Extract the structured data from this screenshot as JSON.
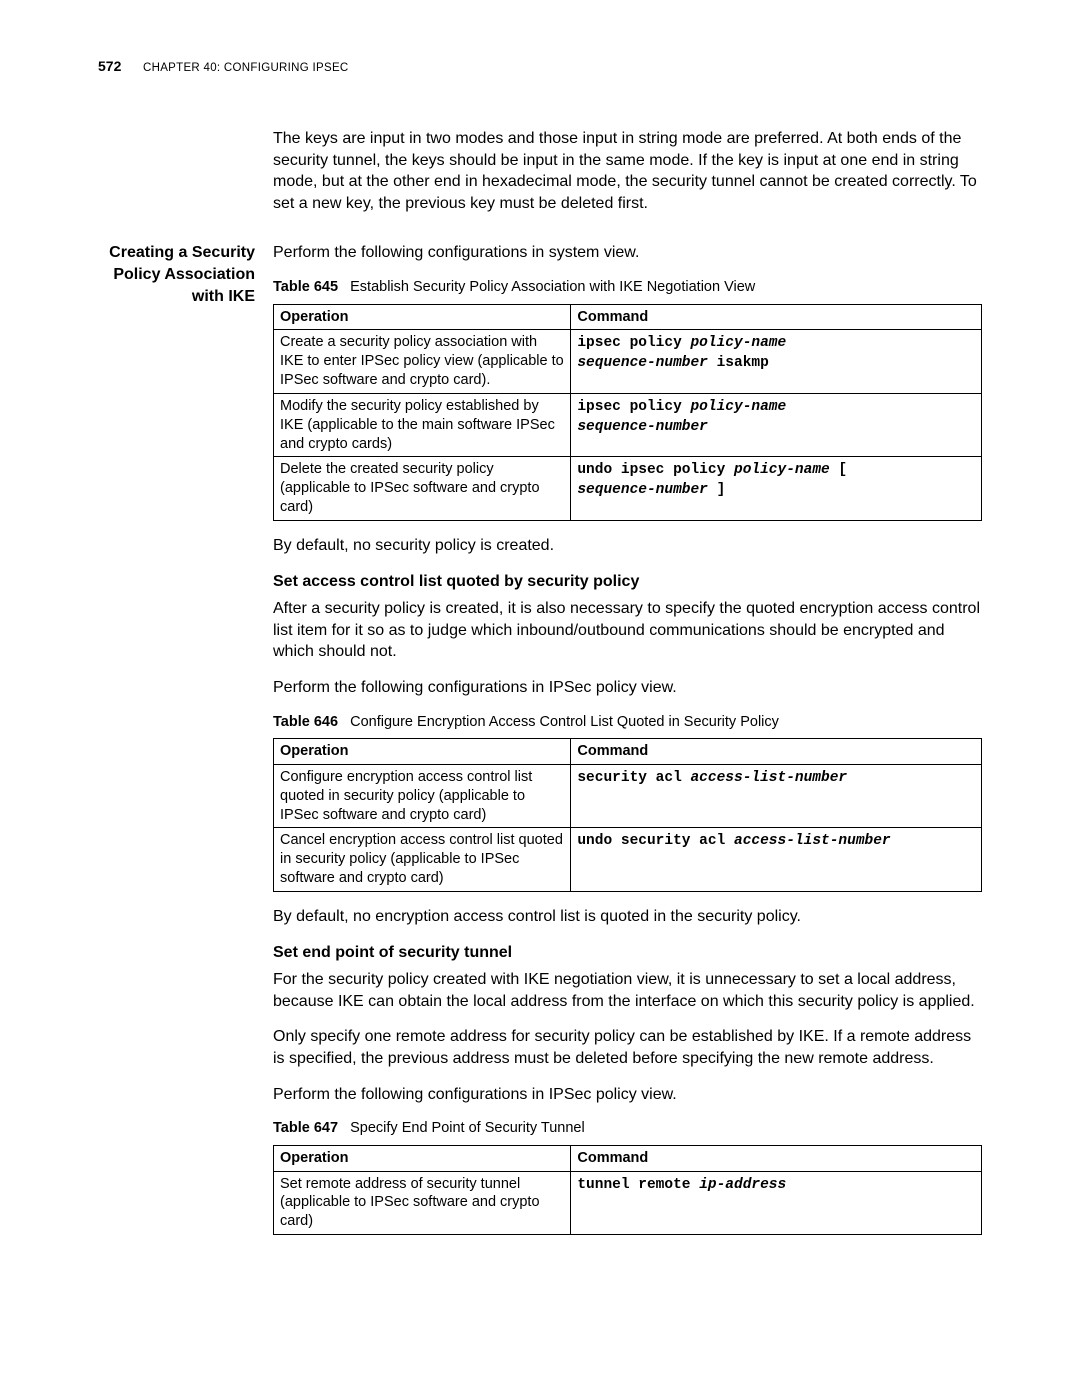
{
  "header": {
    "page_number": "572",
    "chapter_prefix": "C",
    "chapter_word": "HAPTER",
    "chapter_num": " 40: C",
    "chapter_word2": "ONFIGURING",
    "chapter_tail": " IPS",
    "chapter_tail2": "EC"
  },
  "intro_paragraph": "The keys are input in two modes and those input in string mode are preferred. At both ends of the security tunnel, the keys should be input in the same mode. If the key is input at one end in string mode, but at the other end in hexadecimal mode, the security tunnel cannot be created correctly. To set a new key, the previous key must be deleted first.",
  "section1": {
    "side_title": "Creating a Security Policy Association with IKE",
    "lead": "Perform the following configurations in system view.",
    "table_caption_num": "Table 645",
    "table_caption_text": "Establish Security Policy Association with IKE Negotiation View",
    "headers": {
      "op": "Operation",
      "cmd": "Command"
    },
    "rows": [
      {
        "op": "Create a security policy association with IKE to enter IPSec policy view (applicable to IPSec software and crypto card).",
        "cmd_plain1": "ipsec policy ",
        "cmd_ital1": "policy-name",
        "cmd_plain2": " ",
        "cmd_ital2": "sequence-number",
        "cmd_plain3": " isakmp"
      },
      {
        "op": "Modify the security policy established by IKE (applicable to the main software IPSec and crypto cards)",
        "cmd_plain1": "ipsec policy ",
        "cmd_ital1": "policy-name",
        "cmd_plain2": " ",
        "cmd_ital2": "sequence-number",
        "cmd_plain3": ""
      },
      {
        "op": "Delete the created security policy (applicable to IPSec software and crypto card)",
        "cmd_plain1": "undo ipsec policy ",
        "cmd_ital1": "policy-name",
        "cmd_plain2": " [ ",
        "cmd_ital2": "sequence-number",
        "cmd_plain3": " ]"
      }
    ],
    "after": "By default, no security policy is created."
  },
  "section2": {
    "heading": "Set access control list quoted by security policy",
    "p1": "After a security policy is created, it is also necessary to specify the quoted encryption access control list item for it so as to judge which inbound/outbound communications should be encrypted and which should not.",
    "p2": "Perform the following configurations in IPSec policy view.",
    "table_caption_num": "Table 646",
    "table_caption_text": "Configure Encryption Access Control List Quoted in Security Policy",
    "headers": {
      "op": "Operation",
      "cmd": "Command"
    },
    "rows": [
      {
        "op": "Configure encryption access control list quoted in security policy (applicable to IPSec software and crypto card)",
        "cmd_plain1": "security acl ",
        "cmd_ital1": "access-list-number"
      },
      {
        "op": "Cancel encryption access control list quoted in security policy (applicable to IPSec software and crypto card)",
        "cmd_plain1": "undo security acl ",
        "cmd_ital1": "access-list-number"
      }
    ],
    "after": "By default, no encryption access control list is quoted in the security policy."
  },
  "section3": {
    "heading": "Set end point of security tunnel",
    "p1": "For the security policy created with IKE negotiation view, it is unnecessary to set a local address, because IKE can obtain the local address from the interface on which this security policy is applied.",
    "p2": "Only specify one remote address for security policy can be established by IKE. If a remote address is specified, the previous address must be deleted before specifying the new remote address.",
    "p3": "Perform the following configurations in IPSec policy view.",
    "table_caption_num": "Table 647",
    "table_caption_text": "Specify End Point of Security Tunnel",
    "headers": {
      "op": "Operation",
      "cmd": "Command"
    },
    "rows": [
      {
        "op": "Set remote address of security tunnel (applicable to IPSec software and crypto card)",
        "cmd_plain1": "tunnel remote ",
        "cmd_ital1": "ip-address"
      }
    ]
  }
}
